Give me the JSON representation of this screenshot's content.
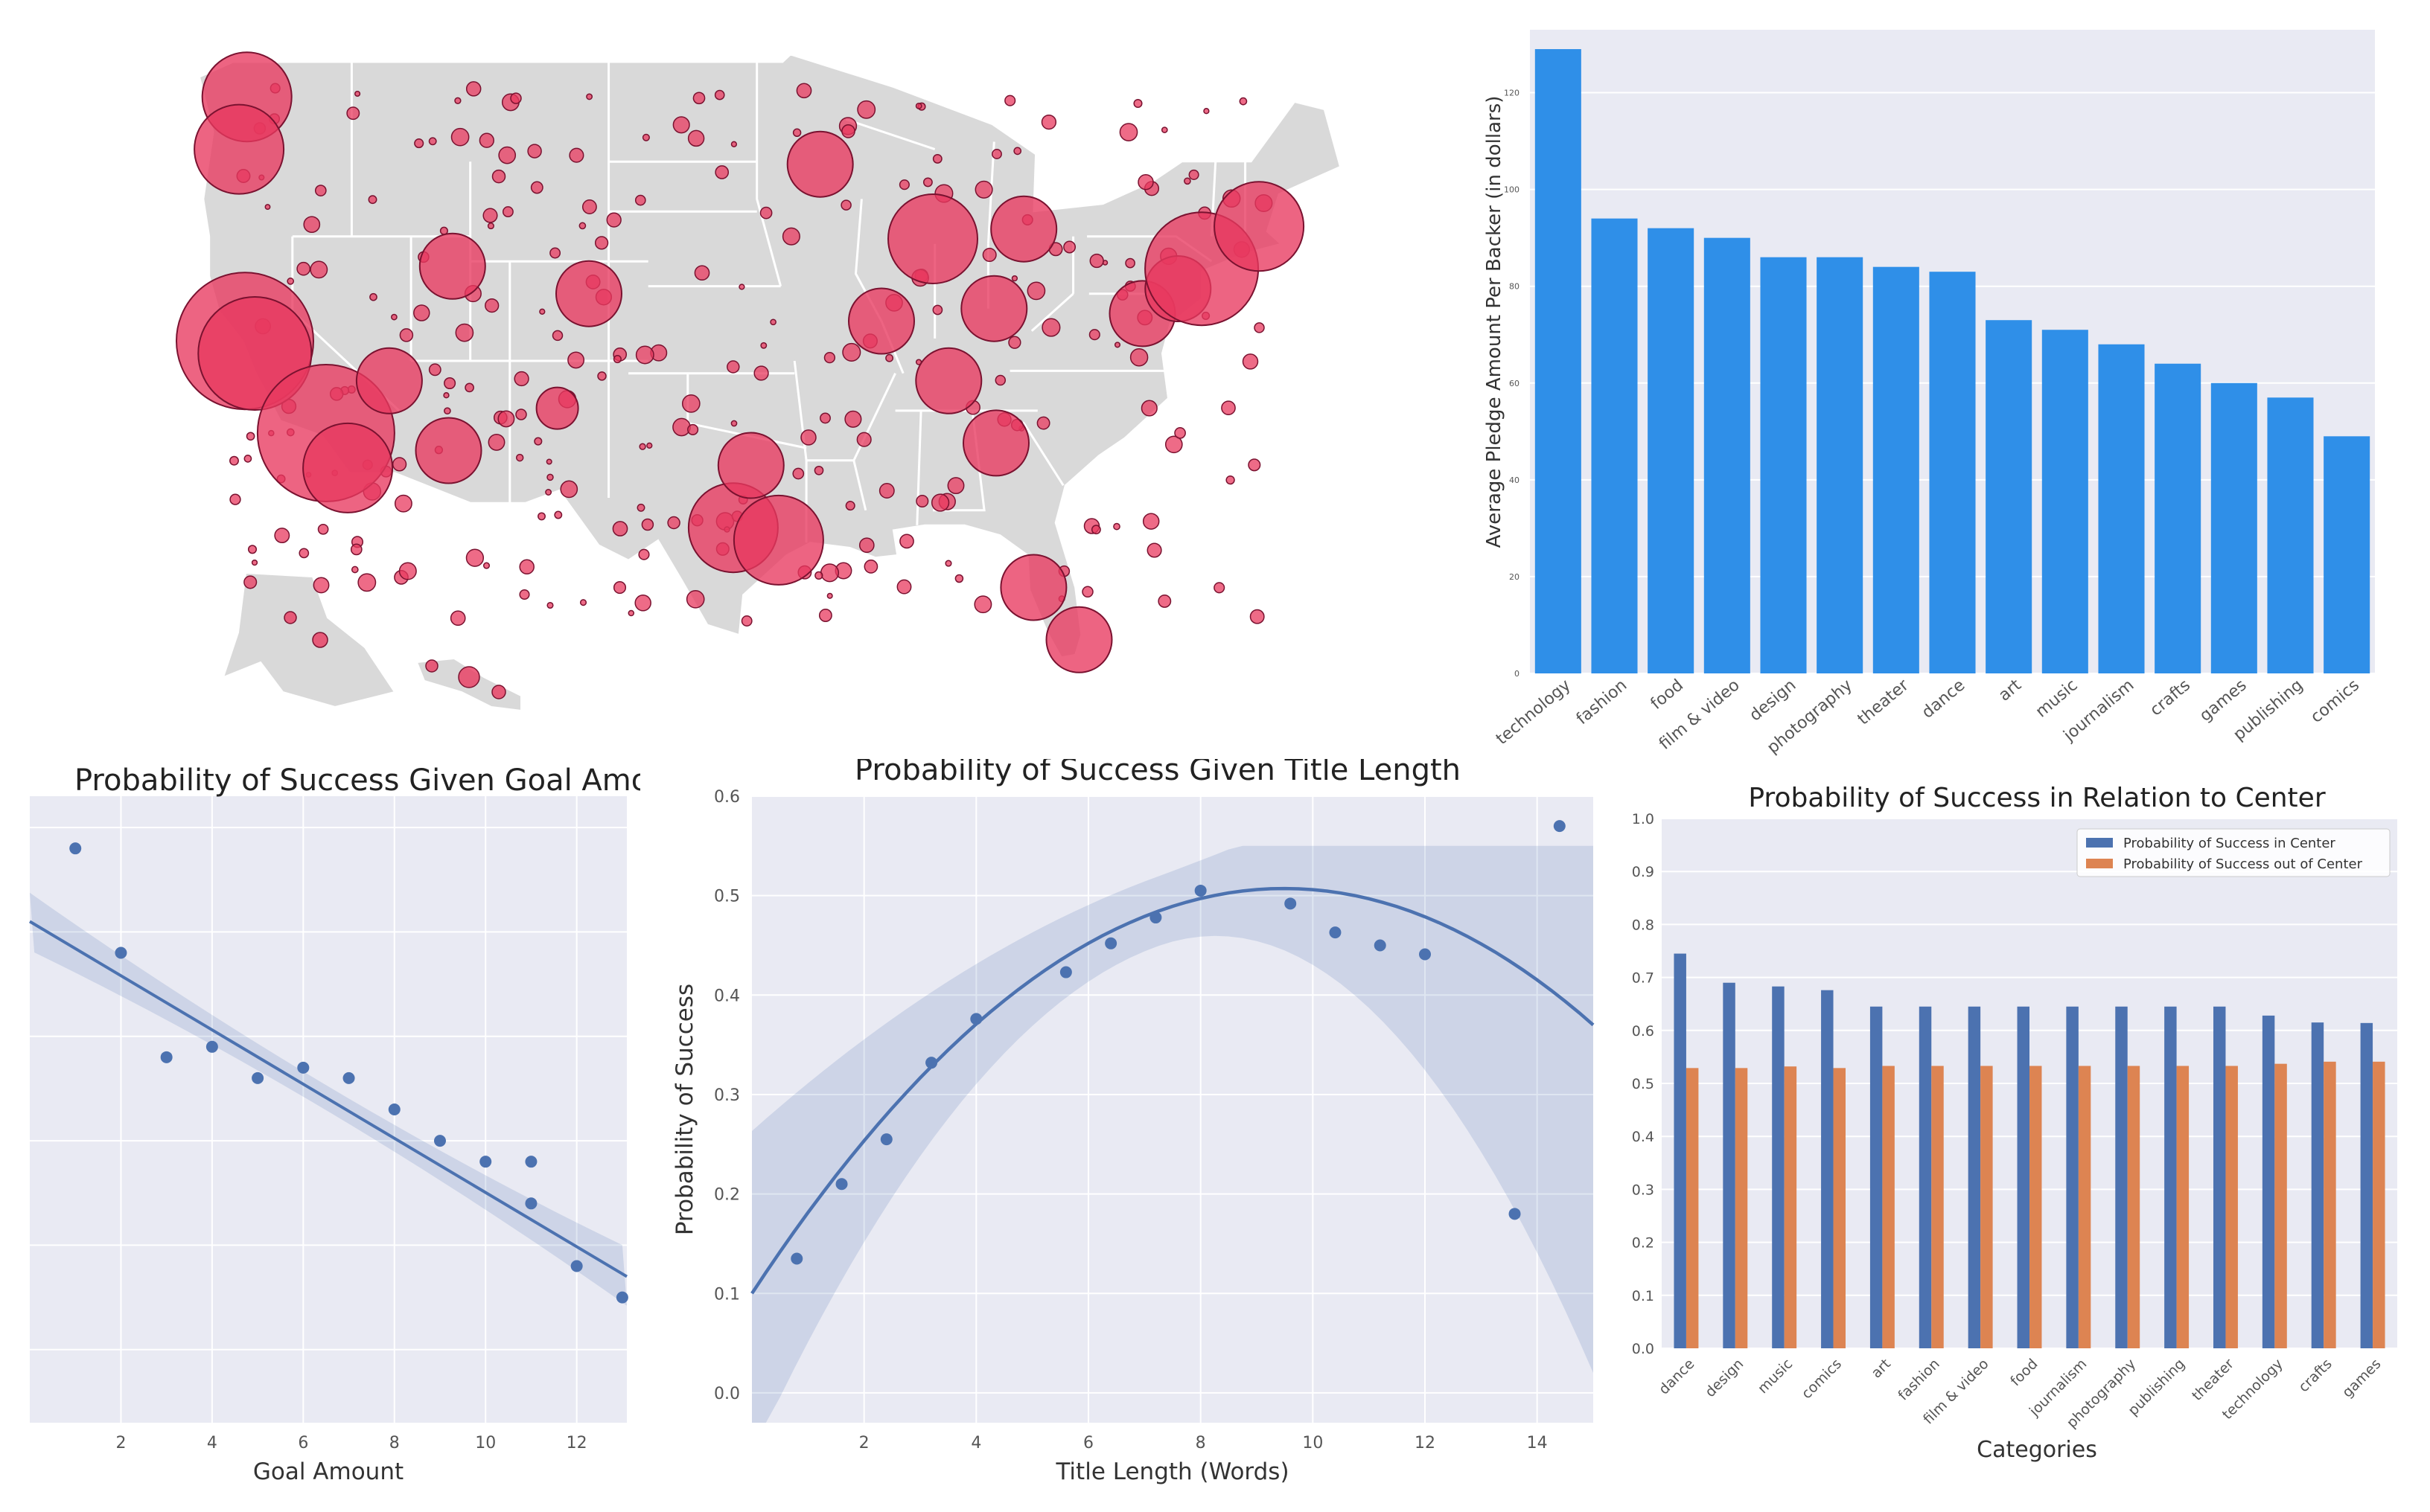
{
  "colors": {
    "map_land": "#d9d9d9",
    "map_border": "#ffffff",
    "bubble": "#e8395f",
    "bubble_edge": "#7a1230",
    "bar_blue": "#2f8fe8",
    "seaborn_bg": "#e9eaf3",
    "line_blue": "#4c72b0",
    "series_orange": "#dd8452"
  },
  "chart_data": [
    {
      "type": "scatter",
      "id": "map",
      "title": "",
      "bubbles": [
        {
          "lon": -122.3,
          "lat": 47.6,
          "size": 3
        },
        {
          "lon": -122.7,
          "lat": 45.5,
          "size": 3
        },
        {
          "lon": -122.4,
          "lat": 37.8,
          "size": 5
        },
        {
          "lon": -121.9,
          "lat": 37.3,
          "size": 4
        },
        {
          "lon": -118.3,
          "lat": 34.1,
          "size": 5
        },
        {
          "lon": -117.2,
          "lat": 32.7,
          "size": 3
        },
        {
          "lon": -115.1,
          "lat": 36.2,
          "size": 2
        },
        {
          "lon": -112.1,
          "lat": 33.4,
          "size": 2
        },
        {
          "lon": -111.9,
          "lat": 40.8,
          "size": 2
        },
        {
          "lon": -105.0,
          "lat": 39.7,
          "size": 2
        },
        {
          "lon": -97.7,
          "lat": 30.3,
          "size": 3
        },
        {
          "lon": -95.4,
          "lat": 29.8,
          "size": 3
        },
        {
          "lon": -96.8,
          "lat": 32.8,
          "size": 2
        },
        {
          "lon": -93.3,
          "lat": 44.9,
          "size": 2
        },
        {
          "lon": -87.6,
          "lat": 41.9,
          "size": 3
        },
        {
          "lon": -84.4,
          "lat": 33.7,
          "size": 2
        },
        {
          "lon": -80.2,
          "lat": 25.8,
          "size": 2
        },
        {
          "lon": -82.5,
          "lat": 27.9,
          "size": 2
        },
        {
          "lon": -77.0,
          "lat": 38.9,
          "size": 2
        },
        {
          "lon": -75.2,
          "lat": 39.9,
          "size": 2
        },
        {
          "lon": -74.0,
          "lat": 40.7,
          "size": 4
        },
        {
          "lon": -71.1,
          "lat": 42.4,
          "size": 3
        },
        {
          "lon": -83.0,
          "lat": 42.3,
          "size": 2
        },
        {
          "lon": -86.8,
          "lat": 36.2,
          "size": 2
        },
        {
          "lon": -90.2,
          "lat": 38.6,
          "size": 2
        },
        {
          "lon": -84.5,
          "lat": 39.1,
          "size": 2
        },
        {
          "lon": -106.6,
          "lat": 35.1,
          "size": 1
        },
        {
          "lon": -157.9,
          "lat": 21.3,
          "size": 1
        }
      ]
    },
    {
      "type": "bar",
      "id": "pledge",
      "title": "",
      "xlabel": "",
      "ylabel": "Average Pledge Amount Per Backer (in dollars)",
      "categories": [
        "technology",
        "fashion",
        "food",
        "film & video",
        "design",
        "photography",
        "theater",
        "dance",
        "art",
        "music",
        "journalism",
        "crafts",
        "games",
        "publishing",
        "comics"
      ],
      "values": [
        129,
        94,
        92,
        90,
        86,
        86,
        84,
        83,
        73,
        71,
        68,
        64,
        60,
        57,
        49
      ],
      "yticks": [
        "0",
        "20",
        "40",
        "60",
        "80",
        "100",
        "120"
      ],
      "ylim": [
        0,
        133
      ]
    },
    {
      "type": "scatter",
      "id": "goal",
      "title": "Probability of Success Given Goal Amount",
      "xlabel": "Goal Amount",
      "ylabel": "",
      "xticks": [
        "2",
        "4",
        "6",
        "8",
        "10",
        "12"
      ],
      "x": [
        1,
        2,
        3,
        4,
        5,
        6,
        7,
        8,
        9,
        10,
        11,
        11,
        12,
        13
      ],
      "y": [
        0.58,
        0.48,
        0.38,
        0.39,
        0.36,
        0.37,
        0.36,
        0.33,
        0.3,
        0.28,
        0.28,
        0.24,
        0.18,
        0.15
      ],
      "fit": {
        "y_start": 0.51,
        "y_end": 0.17
      },
      "xlim": [
        0,
        13.1
      ],
      "ylim": [
        0.03,
        0.63
      ]
    },
    {
      "type": "scatter",
      "id": "title_length",
      "title": "Probability of Success Given Title Length",
      "xlabel": "Title Length (Words)",
      "ylabel": "Probability of Success",
      "xticks": [
        "2",
        "4",
        "6",
        "8",
        "10",
        "12",
        "14"
      ],
      "yticks": [
        "0.0",
        "0.1",
        "0.2",
        "0.3",
        "0.4",
        "0.5",
        "0.6"
      ],
      "x": [
        0.8,
        1.6,
        2.4,
        3.2,
        4.0,
        5.6,
        6.4,
        7.2,
        8.0,
        9.6,
        10.4,
        11.2,
        12.0,
        13.6,
        14.4
      ],
      "y": [
        0.135,
        0.21,
        0.255,
        0.332,
        0.376,
        0.423,
        0.452,
        0.478,
        0.505,
        0.492,
        0.463,
        0.45,
        0.441,
        0.18,
        0.57
      ],
      "fit": {
        "a": -0.00452,
        "b": 0.0858,
        "c": 0.1
      },
      "xlim": [
        0,
        15
      ],
      "ylim": [
        -0.03,
        0.6
      ]
    },
    {
      "type": "bar",
      "id": "center",
      "title": "Probability of Success in Relation to Center",
      "xlabel": "Categories",
      "ylabel": "",
      "yticks": [
        "0.0",
        "0.1",
        "0.2",
        "0.3",
        "0.4",
        "0.5",
        "0.6",
        "0.7",
        "0.8",
        "0.9",
        "1.0"
      ],
      "categories": [
        "dance",
        "design",
        "music",
        "comics",
        "art",
        "fashion",
        "film & video",
        "food",
        "journalism",
        "photography",
        "publishing",
        "theater",
        "technology",
        "crafts",
        "games"
      ],
      "series": [
        {
          "name": "Probability of Success in Center",
          "values": [
            0.745,
            0.69,
            0.683,
            0.676,
            0.645,
            0.645,
            0.645,
            0.645,
            0.645,
            0.645,
            0.645,
            0.645,
            0.628,
            0.615,
            0.614
          ]
        },
        {
          "name": "Probability of Success out of Center",
          "values": [
            0.529,
            0.529,
            0.532,
            0.529,
            0.533,
            0.533,
            0.533,
            0.533,
            0.533,
            0.533,
            0.533,
            0.533,
            0.537,
            0.541,
            0.541
          ]
        }
      ],
      "ylim": [
        0,
        1.0
      ],
      "legend": "top-right"
    }
  ]
}
